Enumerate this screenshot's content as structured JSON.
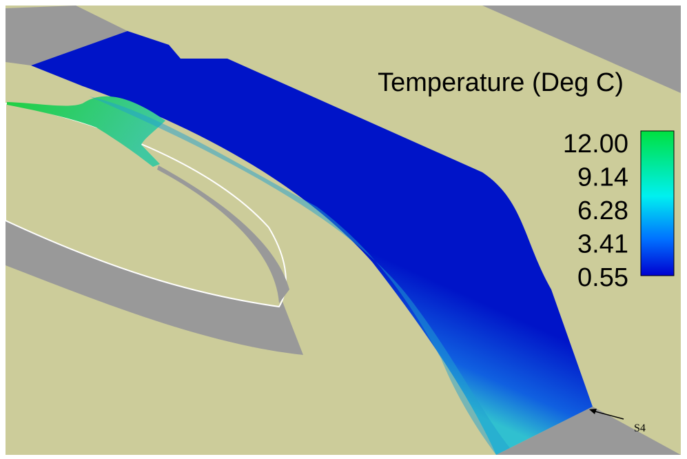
{
  "colorbar": {
    "title": "Temperature (Deg C)",
    "labels": [
      "12.00",
      "9.14",
      "6.28",
      "3.41",
      "0.55"
    ]
  },
  "annotation": "S4"
}
